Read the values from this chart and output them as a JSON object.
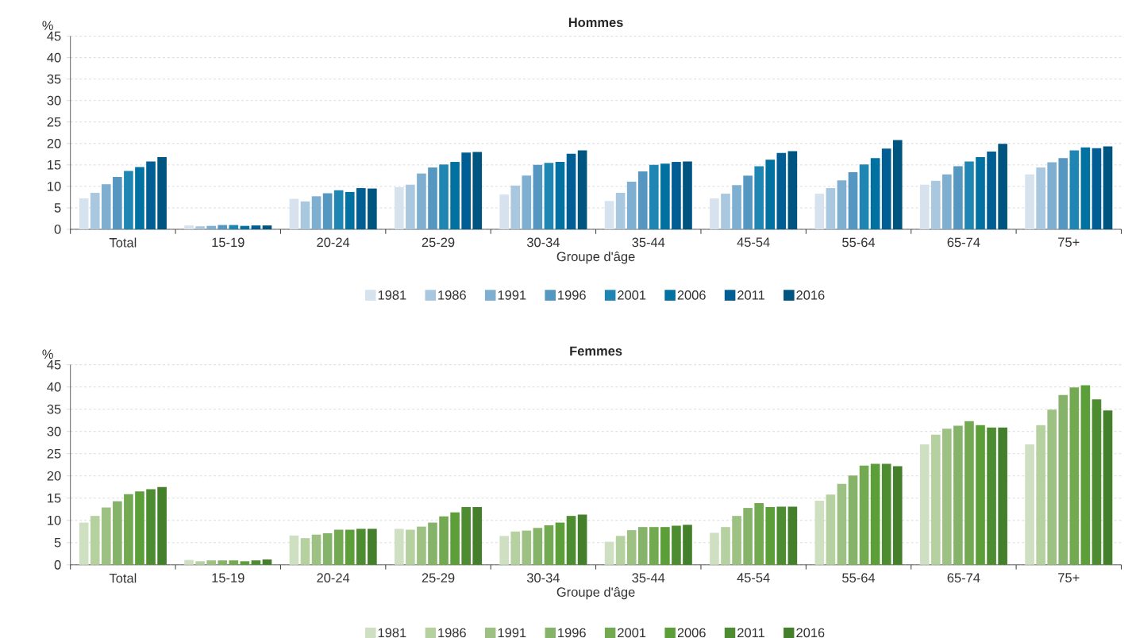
{
  "chart_data": [
    {
      "type": "bar",
      "title": "Hommes",
      "xlabel": "Groupe d'âge",
      "ylabel": "%",
      "categories": [
        "Total",
        "15-19",
        "20-24",
        "25-29",
        "30-34",
        "35-44",
        "45-54",
        "55-64",
        "65-74",
        "75+"
      ],
      "series": [
        {
          "name": "1981",
          "color": "#d6e3ee",
          "values": [
            7.2,
            0.9,
            7.1,
            9.8,
            8.1,
            6.6,
            7.2,
            8.3,
            10.4,
            12.8
          ]
        },
        {
          "name": "1986",
          "color": "#a9c8df",
          "values": [
            8.5,
            0.7,
            6.5,
            10.4,
            10.2,
            8.5,
            8.3,
            9.6,
            11.3,
            14.4
          ]
        },
        {
          "name": "1991",
          "color": "#7eafd0",
          "values": [
            10.5,
            0.8,
            7.7,
            13.0,
            12.5,
            11.1,
            10.3,
            11.4,
            12.8,
            15.6
          ]
        },
        {
          "name": "1996",
          "color": "#5597c0",
          "values": [
            12.2,
            1.0,
            8.4,
            14.4,
            15.0,
            13.5,
            12.5,
            13.3,
            14.7,
            16.6
          ]
        },
        {
          "name": "2001",
          "color": "#1f86b4",
          "values": [
            13.6,
            1.0,
            9.1,
            15.1,
            15.5,
            15.0,
            14.7,
            15.1,
            15.8,
            18.4
          ]
        },
        {
          "name": "2006",
          "color": "#0071a0",
          "values": [
            14.5,
            0.8,
            8.7,
            15.7,
            15.7,
            15.3,
            16.2,
            16.6,
            16.8,
            19.1
          ]
        },
        {
          "name": "2011",
          "color": "#005e94",
          "values": [
            15.8,
            0.9,
            9.6,
            17.9,
            17.6,
            15.7,
            17.8,
            18.8,
            18.1,
            18.9
          ]
        },
        {
          "name": "2016",
          "color": "#005580",
          "values": [
            16.8,
            0.9,
            9.5,
            18.0,
            18.4,
            15.8,
            18.2,
            20.8,
            19.9,
            19.3
          ]
        }
      ],
      "ylim": [
        0,
        45
      ],
      "yticks": [
        0,
        5,
        10,
        15,
        20,
        25,
        30,
        35,
        40,
        45
      ],
      "grid": "y",
      "legend": "bottom"
    },
    {
      "type": "bar",
      "title": "Femmes",
      "xlabel": "Groupe d'âge",
      "ylabel": "%",
      "categories": [
        "Total",
        "15-19",
        "20-24",
        "25-29",
        "30-34",
        "35-44",
        "45-54",
        "55-64",
        "65-74",
        "75+"
      ],
      "series": [
        {
          "name": "1981",
          "color": "#cfe0c2",
          "values": [
            9.5,
            1.1,
            6.6,
            8.1,
            6.5,
            5.2,
            7.2,
            14.4,
            27.1,
            27.1
          ]
        },
        {
          "name": "1986",
          "color": "#b6d1a0",
          "values": [
            11.0,
            0.8,
            6.0,
            7.9,
            7.5,
            6.5,
            8.5,
            15.8,
            29.3,
            31.4
          ]
        },
        {
          "name": "1991",
          "color": "#9dc182",
          "values": [
            12.9,
            1.0,
            6.8,
            8.6,
            7.7,
            7.8,
            11.0,
            18.2,
            30.6,
            34.9
          ]
        },
        {
          "name": "1996",
          "color": "#86b36a",
          "values": [
            14.3,
            1.0,
            7.1,
            9.5,
            8.3,
            8.5,
            12.8,
            20.1,
            31.3,
            38.2
          ]
        },
        {
          "name": "2001",
          "color": "#72a951",
          "values": [
            15.9,
            1.0,
            7.9,
            10.9,
            8.9,
            8.5,
            13.9,
            22.3,
            32.3,
            39.9
          ]
        },
        {
          "name": "2006",
          "color": "#5c9e37",
          "values": [
            16.5,
            0.8,
            7.9,
            11.8,
            9.5,
            8.5,
            13.0,
            22.7,
            31.4,
            40.4
          ]
        },
        {
          "name": "2011",
          "color": "#4d8c30",
          "values": [
            17.0,
            1.0,
            8.1,
            13.0,
            11.0,
            8.8,
            13.1,
            22.7,
            30.9,
            37.2
          ]
        },
        {
          "name": "2016",
          "color": "#447f2b",
          "values": [
            17.5,
            1.2,
            8.1,
            13.0,
            11.3,
            9.0,
            13.1,
            22.2,
            30.9,
            34.7
          ]
        }
      ],
      "ylim": [
        0,
        45
      ],
      "yticks": [
        0,
        5,
        10,
        15,
        20,
        25,
        30,
        35,
        40,
        45
      ],
      "grid": "y",
      "legend": "bottom"
    }
  ]
}
